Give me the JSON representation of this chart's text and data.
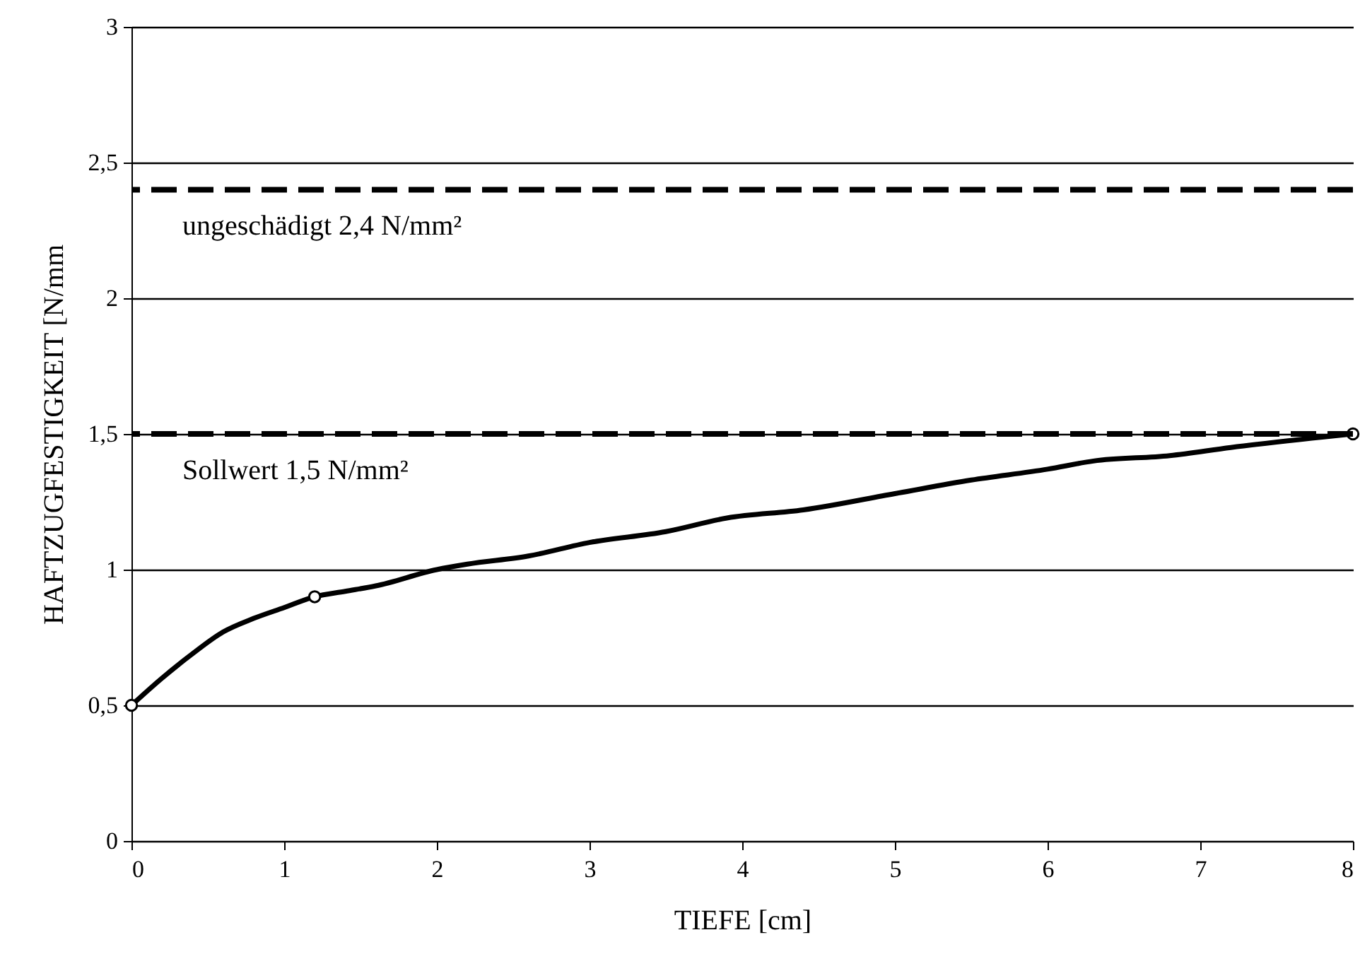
{
  "chart_data": {
    "type": "line",
    "xlabel": "TIEFE [cm]",
    "ylabel": "HAFTZUGFESTIGKEIT  [N/mm",
    "xlim": [
      0,
      8
    ],
    "xticks": [
      0,
      1,
      2,
      3,
      4,
      5,
      6,
      7,
      8
    ],
    "ylim": [
      0,
      3
    ],
    "yticks": [
      0,
      {
        "value": 0.5,
        "label": "0,5"
      },
      1,
      {
        "value": 1.5,
        "label": "1,5"
      },
      2,
      {
        "value": 2.5,
        "label": "2,5"
      },
      3
    ],
    "grid": "y",
    "series": [
      {
        "color": "#000000",
        "marker": "none",
        "x": [
          0,
          0.2,
          0.4,
          0.6,
          0.8,
          1.0,
          1.2,
          1.4,
          1.6,
          2.0,
          2.2,
          2.6,
          3.0,
          3.5,
          3.9,
          4.4,
          5.0,
          5.5,
          6.0,
          6.3,
          6.8,
          7.2,
          8
        ],
        "values": [
          0.5,
          0.6,
          0.69,
          0.77,
          0.82,
          0.86,
          0.9,
          0.92,
          0.94,
          1.0,
          1.02,
          1.05,
          1.1,
          1.14,
          1.19,
          1.22,
          1.28,
          1.33,
          1.37,
          1.4,
          1.42,
          1.45,
          1.5
        ]
      },
      {
        "type": "scatter",
        "color": "#000000",
        "marker": "circle",
        "x": [
          0,
          1.2,
          8
        ],
        "values": [
          0.5,
          0.9,
          1.5
        ]
      }
    ],
    "ref_lines": [
      {
        "axis": "y",
        "value": 2.4,
        "label": "ungeschädigt 2,4 N/mm²",
        "color": "#000000",
        "line_style": "dashed"
      },
      {
        "axis": "y",
        "value": 1.5,
        "label": "Sollwert 1,5 N/mm²",
        "color": "#000000",
        "line_style": "dashed"
      }
    ]
  }
}
